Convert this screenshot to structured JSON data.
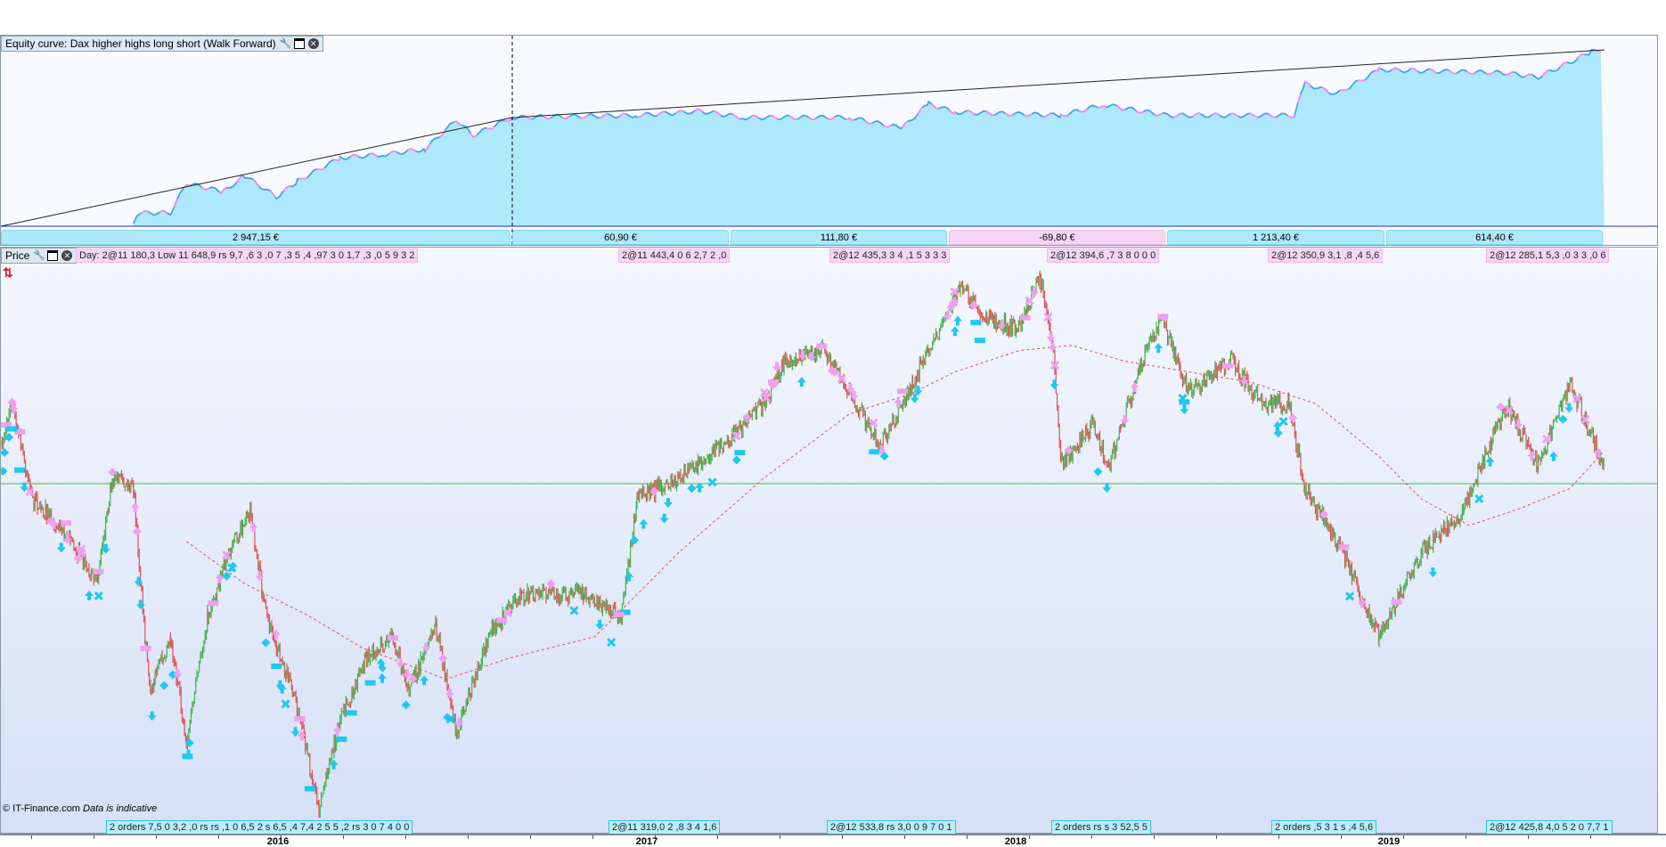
{
  "equity": {
    "title": "Equity curve: Dax higher highs long short (Walk Forward)",
    "segments": [
      {
        "label": "2 947,15 €",
        "color": "#aee9fb"
      },
      {
        "label": "60,90 €",
        "color": "#aee9fb"
      },
      {
        "label": "111,80 €",
        "color": "#aee9fb"
      },
      {
        "label": "-69,80 €",
        "color": "#f6d6f6"
      },
      {
        "label": "1 213,40 €",
        "color": "#aee9fb"
      },
      {
        "label": "614,40 €",
        "color": "#aee9fb"
      }
    ]
  },
  "price": {
    "title": "Price",
    "header_text": "Day: 2@11 180,3 Low 11 648,9 rs 9,7 ,6 3 ,0 7 ,3 5 ,4 ,97 3 0 1,7 ,3 ,0 5 9 3 2",
    "top_orders": [
      "2@11 443,4 0 6 2,7 2 ,0",
      "2@12 435,3 3 4 ,1 5 3 3 3",
      "2@12 394,6 ,7 3 8 0 0 0",
      "2@12 350,9 3,1 ,8 ,4 5,6",
      "2@12 285,1 5,3 ,0 3 3 ,0 6"
    ],
    "bottom_orders": [
      "2 orders 7,5 0 3,2 ,0 rs rs ,1 0 6,5 2 s 6,5 ,4 7,4 2 5 5 ,2 rs 3 0 7 4 0 0",
      "2@11 319,0 2 ,8 3 4 1,6",
      "2@12 533,8 rs 3,0 0 9 7 0 1",
      "2 orders rs s 3 52,5 5",
      "2 orders ,5 3 1 s ,4 5,6",
      "2@12 425,8 4,0 5 2 0 7,7 1"
    ],
    "footer": "© IT-Finance.com",
    "footer_note": "Data is indicative"
  },
  "xaxis": {
    "labels": [
      "2016",
      "2017",
      "2018",
      "2019"
    ]
  },
  "colors": {
    "up": "#3cb44b",
    "down": "#e05050",
    "equity_fill": "#aee9fb",
    "equity_line": "#1eb4f0",
    "flat": "#f08cf0",
    "buy": "#1ec8f0",
    "sell": "#f0a0f0",
    "hline": "#3cc03c",
    "ma": "#e05050"
  }
}
